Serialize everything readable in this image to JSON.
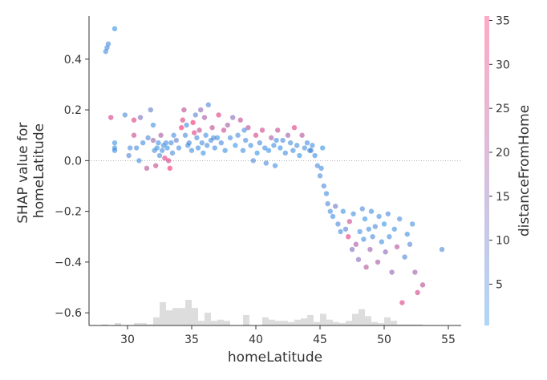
{
  "chart_data": {
    "type": "scatter",
    "xlabel": "homeLatitude",
    "ylabel_lines": [
      "SHAP value for",
      "homeLatitude"
    ],
    "colorbar_label": "distanceFromHome",
    "xlim": [
      27,
      56
    ],
    "ylim": [
      -0.65,
      0.57
    ],
    "xticks": [
      30,
      35,
      40,
      45,
      50,
      55
    ],
    "yticks": [
      0.4,
      0.2,
      0.0,
      -0.2,
      -0.4,
      -0.6
    ],
    "ytick_labels": [
      "0.4",
      "0.2",
      "0.0",
      "−0.2",
      "−0.4",
      "−0.6"
    ],
    "colorbar_ticks": [
      5,
      10,
      15,
      20,
      25,
      30,
      35
    ],
    "colorbar_range": [
      0.3,
      35.5
    ],
    "colors": {
      "low": "#1E88E5",
      "high": "#FF0D57",
      "histogram": "#dddddd",
      "zero_line": "#999999"
    },
    "histogram": {
      "bin_edges": [
        28,
        28.5,
        29,
        29.5,
        30,
        30.5,
        31,
        31.5,
        32,
        32.5,
        33,
        33.5,
        34,
        34.5,
        35,
        35.5,
        36,
        36.5,
        37,
        37.5,
        38,
        38.5,
        39,
        39.5,
        40,
        40.5,
        41,
        41.5,
        42,
        42.5,
        43,
        43.5,
        44,
        44.5,
        45,
        45.5,
        46,
        46.5,
        47,
        47.5,
        48,
        48.5,
        49,
        49.5,
        50,
        50.5,
        51,
        51.5,
        52,
        52.5,
        53
      ],
      "counts": [
        1,
        0,
        2,
        0,
        0,
        2,
        2,
        1,
        7,
        20,
        13,
        15,
        15,
        22,
        15,
        4,
        11,
        4,
        5,
        4,
        0,
        0,
        9,
        0,
        0,
        7,
        5,
        4,
        4,
        3,
        5,
        6,
        9,
        3,
        10,
        5,
        3,
        2,
        4,
        10,
        14,
        8,
        3,
        2,
        7,
        4,
        1,
        1,
        1,
        1
      ]
    },
    "points": [
      [
        28.3,
        0.43,
        3
      ],
      [
        28.4,
        0.445,
        2
      ],
      [
        28.5,
        0.46,
        4
      ],
      [
        29.0,
        0.52,
        1
      ],
      [
        28.7,
        0.17,
        28
      ],
      [
        29.0,
        0.04,
        2
      ],
      [
        29.0,
        0.07,
        1
      ],
      [
        29.0,
        0.05,
        3
      ],
      [
        29.8,
        0.18,
        4
      ],
      [
        30.2,
        0.05,
        3
      ],
      [
        30.1,
        0.02,
        6
      ],
      [
        30.5,
        0.16,
        30
      ],
      [
        30.5,
        0.1,
        26
      ],
      [
        30.7,
        0.05,
        4
      ],
      [
        31.0,
        0.17,
        12
      ],
      [
        30.9,
        0.0,
        3
      ],
      [
        31.2,
        0.07,
        2
      ],
      [
        31.5,
        -0.03,
        22
      ],
      [
        31.6,
        0.09,
        5
      ],
      [
        31.8,
        0.2,
        8
      ],
      [
        32.0,
        0.14,
        2
      ],
      [
        32.0,
        0.08,
        18
      ],
      [
        32.1,
        0.04,
        3
      ],
      [
        32.2,
        -0.02,
        25
      ],
      [
        32.3,
        0.05,
        1
      ],
      [
        32.4,
        0.07,
        2
      ],
      [
        32.5,
        0.02,
        3
      ],
      [
        32.6,
        0.1,
        20
      ],
      [
        32.7,
        0.04,
        4
      ],
      [
        32.8,
        0.06,
        2
      ],
      [
        32.9,
        0.01,
        30
      ],
      [
        33.0,
        0.07,
        3
      ],
      [
        33.1,
        0.05,
        1
      ],
      [
        33.2,
        0.0,
        28
      ],
      [
        33.3,
        -0.03,
        33
      ],
      [
        33.4,
        0.07,
        2
      ],
      [
        33.5,
        0.03,
        4
      ],
      [
        33.6,
        0.1,
        3
      ],
      [
        33.8,
        0.08,
        8
      ],
      [
        34.0,
        0.05,
        2
      ],
      [
        34.2,
        0.13,
        34
      ],
      [
        34.3,
        0.16,
        30
      ],
      [
        34.4,
        0.2,
        24
      ],
      [
        34.5,
        0.1,
        3
      ],
      [
        34.6,
        0.14,
        2
      ],
      [
        34.8,
        0.07,
        5
      ],
      [
        35.0,
        0.04,
        3
      ],
      [
        35.1,
        0.15,
        33
      ],
      [
        35.2,
        0.11,
        29
      ],
      [
        35.3,
        0.18,
        6
      ],
      [
        35.4,
        0.09,
        4
      ],
      [
        35.5,
        0.05,
        2
      ],
      [
        35.6,
        0.12,
        25
      ],
      [
        35.7,
        0.2,
        15
      ],
      [
        35.8,
        0.07,
        3
      ],
      [
        35.9,
        0.03,
        1
      ],
      [
        36.0,
        0.17,
        20
      ],
      [
        36.1,
        0.1,
        2
      ],
      [
        36.2,
        0.06,
        4
      ],
      [
        36.3,
        0.22,
        5
      ],
      [
        36.5,
        0.08,
        3
      ],
      [
        36.6,
        0.13,
        25
      ],
      [
        36.8,
        0.05,
        2
      ],
      [
        37.0,
        0.09,
        1
      ],
      [
        37.1,
        0.18,
        30
      ],
      [
        37.3,
        0.07,
        4
      ],
      [
        37.5,
        0.12,
        26
      ],
      [
        37.6,
        0.04,
        2
      ],
      [
        37.8,
        0.14,
        20
      ],
      [
        38.0,
        0.09,
        3
      ],
      [
        38.2,
        0.17,
        14
      ],
      [
        38.4,
        0.06,
        1
      ],
      [
        38.6,
        0.1,
        4
      ],
      [
        38.8,
        0.16,
        25
      ],
      [
        39.0,
        0.04,
        2
      ],
      [
        39.2,
        0.08,
        3
      ],
      [
        39.4,
        0.13,
        24
      ],
      [
        39.6,
        0.06,
        2
      ],
      [
        39.8,
        0.0,
        5
      ],
      [
        40.0,
        0.1,
        28
      ],
      [
        40.1,
        0.03,
        1
      ],
      [
        40.3,
        0.07,
        3
      ],
      [
        40.5,
        0.12,
        26
      ],
      [
        40.7,
        0.05,
        2
      ],
      [
        40.8,
        -0.01,
        4
      ],
      [
        41.0,
        0.04,
        1
      ],
      [
        41.2,
        0.09,
        20
      ],
      [
        41.4,
        0.06,
        3
      ],
      [
        41.5,
        -0.02,
        2
      ],
      [
        41.7,
        0.12,
        25
      ],
      [
        41.9,
        0.05,
        1
      ],
      [
        42.1,
        0.08,
        4
      ],
      [
        42.3,
        0.03,
        2
      ],
      [
        42.5,
        0.1,
        18
      ],
      [
        42.7,
        0.07,
        3
      ],
      [
        42.9,
        0.04,
        2
      ],
      [
        43.0,
        0.13,
        30
      ],
      [
        43.2,
        0.06,
        4
      ],
      [
        43.4,
        0.02,
        1
      ],
      [
        43.6,
        0.1,
        22
      ],
      [
        43.8,
        0.05,
        3
      ],
      [
        44.0,
        0.07,
        2
      ],
      [
        44.2,
        0.04,
        1
      ],
      [
        44.4,
        0.06,
        3
      ],
      [
        44.6,
        0.02,
        2
      ],
      [
        44.8,
        -0.02,
        4
      ],
      [
        45.0,
        -0.06,
        3
      ],
      [
        45.1,
        -0.03,
        2
      ],
      [
        45.2,
        0.05,
        1
      ],
      [
        45.3,
        -0.1,
        4
      ],
      [
        45.5,
        -0.13,
        2
      ],
      [
        45.6,
        -0.17,
        5
      ],
      [
        45.8,
        -0.2,
        3
      ],
      [
        46.0,
        -0.22,
        2
      ],
      [
        46.2,
        -0.18,
        10
      ],
      [
        46.4,
        -0.25,
        4
      ],
      [
        46.6,
        -0.28,
        3
      ],
      [
        46.8,
        -0.2,
        1
      ],
      [
        47.0,
        -0.27,
        6
      ],
      [
        47.2,
        -0.3,
        30
      ],
      [
        47.3,
        -0.24,
        26
      ],
      [
        47.5,
        -0.35,
        12
      ],
      [
        47.6,
        -0.21,
        2
      ],
      [
        47.8,
        -0.33,
        20
      ],
      [
        48.0,
        -0.39,
        14
      ],
      [
        48.1,
        -0.28,
        3
      ],
      [
        48.3,
        -0.19,
        4
      ],
      [
        48.4,
        -0.31,
        2
      ],
      [
        48.5,
        -0.23,
        1
      ],
      [
        48.6,
        -0.42,
        22
      ],
      [
        48.8,
        -0.27,
        3
      ],
      [
        48.9,
        -0.35,
        18
      ],
      [
        49.0,
        -0.2,
        2
      ],
      [
        49.1,
        -0.3,
        4
      ],
      [
        49.3,
        -0.26,
        5
      ],
      [
        49.5,
        -0.4,
        20
      ],
      [
        49.6,
        -0.22,
        3
      ],
      [
        49.8,
        -0.32,
        2
      ],
      [
        50.0,
        -0.25,
        1
      ],
      [
        50.1,
        -0.36,
        15
      ],
      [
        50.3,
        -0.21,
        4
      ],
      [
        50.4,
        -0.3,
        3
      ],
      [
        50.6,
        -0.44,
        16
      ],
      [
        50.8,
        -0.27,
        2
      ],
      [
        51.0,
        -0.34,
        22
      ],
      [
        51.2,
        -0.23,
        3
      ],
      [
        51.4,
        -0.56,
        30
      ],
      [
        51.6,
        -0.38,
        4
      ],
      [
        51.8,
        -0.29,
        2
      ],
      [
        52.0,
        -0.33,
        6
      ],
      [
        52.2,
        -0.25,
        3
      ],
      [
        52.4,
        -0.44,
        18
      ],
      [
        52.6,
        -0.52,
        28
      ],
      [
        53.0,
        -0.49,
        24
      ],
      [
        54.5,
        -0.35,
        4
      ],
      [
        44.3,
        0.04,
        5
      ],
      [
        41.6,
        0.08,
        2
      ],
      [
        39.1,
        0.12,
        3
      ],
      [
        36.7,
        0.09,
        4
      ],
      [
        34.7,
        0.06,
        2
      ]
    ]
  }
}
